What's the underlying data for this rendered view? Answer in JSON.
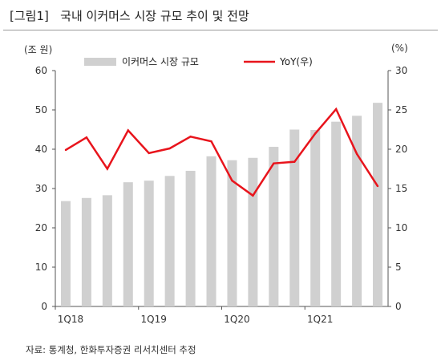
{
  "header": {
    "title": "[그림1]   국내 이커머스 시장 규모 추이 및 전망"
  },
  "units": {
    "left": "(조 원)",
    "right": "(%)"
  },
  "source": "자료: 통계청, 한화투자증권 리서치센터 추정",
  "colors": {
    "bar": "#d0d0d0",
    "line": "#e8141c",
    "axis": "#555555"
  },
  "chart_data": {
    "type": "bar+line",
    "categories": [
      "1Q18",
      "2Q18",
      "3Q18",
      "4Q18",
      "1Q19",
      "2Q19",
      "3Q19",
      "4Q19",
      "1Q20",
      "2Q20",
      "3Q20",
      "4Q20",
      "1Q21",
      "2Q21",
      "3Q21",
      "4Q21"
    ],
    "x_tick_labels": [
      {
        "index": 0,
        "label": "1Q18"
      },
      {
        "index": 4,
        "label": "1Q19"
      },
      {
        "index": 8,
        "label": "1Q20"
      },
      {
        "index": 12,
        "label": "1Q21"
      }
    ],
    "series": [
      {
        "name": "이커머스 시장 규모",
        "type": "bar",
        "axis": "left",
        "values": [
          26.8,
          27.6,
          28.3,
          31.6,
          32.0,
          33.2,
          34.5,
          38.2,
          37.2,
          37.8,
          40.6,
          45.0,
          44.9,
          47.0,
          48.5,
          51.8
        ]
      },
      {
        "name": "YoY(우)",
        "type": "line",
        "axis": "right",
        "values": [
          19.9,
          21.5,
          17.5,
          22.4,
          19.5,
          20.1,
          21.6,
          21.0,
          16.0,
          14.1,
          18.2,
          18.4,
          22.0,
          25.1,
          19.4,
          15.3
        ]
      }
    ],
    "y_left": {
      "min": 0,
      "max": 60,
      "ticks": [
        0,
        10,
        20,
        30,
        40,
        50,
        60
      ]
    },
    "y_right": {
      "min": 0,
      "max": 30,
      "ticks": [
        0,
        5,
        10,
        15,
        20,
        25,
        30
      ]
    },
    "legend_position": "top"
  }
}
